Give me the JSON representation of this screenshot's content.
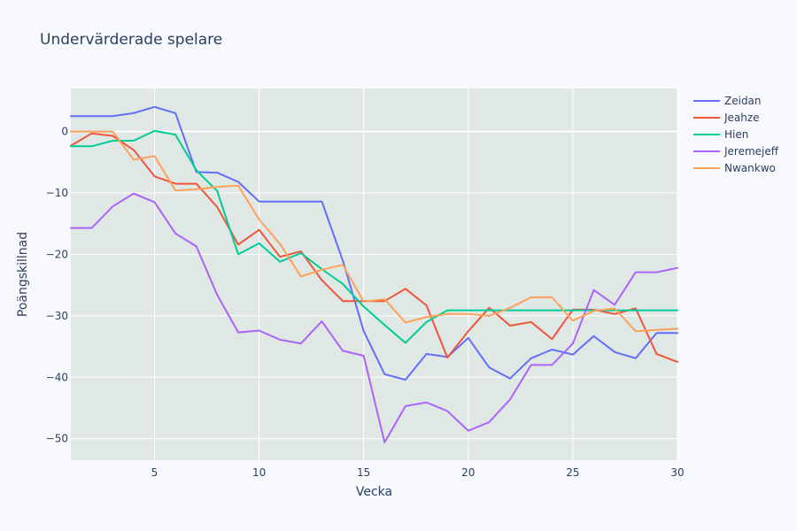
{
  "chart_data": {
    "type": "line",
    "title": "Undervärderade spelare",
    "xlabel": "Vecka",
    "ylabel": "Poängskillnad",
    "xlim": [
      1,
      30
    ],
    "ylim": [
      -53.5,
      7
    ],
    "x_ticks": [
      5,
      10,
      15,
      20,
      25,
      30
    ],
    "y_ticks": [
      0,
      -10,
      -20,
      -30,
      -40,
      -50
    ],
    "y_tick_labels": [
      "0",
      "−10",
      "−20",
      "−30",
      "−40",
      "−50"
    ],
    "grid": true,
    "legend_position": "top-right",
    "x": [
      1,
      2,
      3,
      4,
      5,
      6,
      7,
      8,
      9,
      10,
      11,
      12,
      13,
      14,
      15,
      16,
      17,
      18,
      19,
      20,
      21,
      22,
      23,
      24,
      25,
      26,
      27,
      28,
      29,
      30
    ],
    "series": [
      {
        "name": "Zeidan",
        "color": "#636efa",
        "values": [
          2.5,
          2.5,
          2.5,
          3.0,
          4.0,
          3.0,
          -6.6,
          -6.7,
          -8.2,
          -11.4,
          -11.4,
          -11.4,
          -11.4,
          -21.0,
          -32.5,
          -39.5,
          -40.4,
          -36.2,
          -36.7,
          -33.6,
          -38.4,
          -40.2,
          -36.9,
          -35.5,
          -36.3,
          -33.3,
          -35.9,
          -36.9,
          -32.8,
          -32.8
        ]
      },
      {
        "name": "Jeahze",
        "color": "#ef553b",
        "values": [
          -2.3,
          -0.3,
          -0.7,
          -3.0,
          -7.3,
          -8.5,
          -8.5,
          -12.3,
          -18.4,
          -16.0,
          -20.4,
          -19.5,
          -24.2,
          -27.6,
          -27.6,
          -27.6,
          -25.6,
          -28.3,
          -36.8,
          -32.5,
          -28.7,
          -31.6,
          -31.0,
          -33.8,
          -29.0,
          -29.0,
          -29.7,
          -28.8,
          -36.2,
          -37.5
        ]
      },
      {
        "name": "Hien",
        "color": "#00cc96",
        "values": [
          -2.4,
          -2.4,
          -1.5,
          -1.5,
          0.1,
          -0.5,
          -6.3,
          -9.7,
          -20.0,
          -18.2,
          -21.2,
          -19.8,
          -22.4,
          -24.8,
          -28.5,
          -31.5,
          -34.4,
          -31.0,
          -29.1,
          -29.1,
          -29.1,
          -29.1,
          -29.1,
          -29.1,
          -29.1,
          -29.1,
          -29.1,
          -29.1,
          -29.1,
          -29.1
        ]
      },
      {
        "name": "Jeremejeff",
        "color": "#ab63fa",
        "values": [
          -15.7,
          -15.7,
          -12.2,
          -10.1,
          -11.5,
          -16.6,
          -18.7,
          -26.6,
          -32.7,
          -32.4,
          -33.9,
          -34.5,
          -30.9,
          -35.7,
          -36.5,
          -50.6,
          -44.7,
          -44.1,
          -45.5,
          -48.7,
          -47.3,
          -43.6,
          -38.0,
          -38.0,
          -34.5,
          -25.8,
          -28.2,
          -22.9,
          -22.9,
          -22.2
        ]
      },
      {
        "name": "Nwankwo",
        "color": "#ffa15a",
        "values": [
          0.0,
          0.0,
          0.0,
          -4.6,
          -4.0,
          -9.6,
          -9.4,
          -9.0,
          -8.8,
          -14.3,
          -18.3,
          -23.6,
          -22.5,
          -21.7,
          -27.7,
          -27.3,
          -31.1,
          -30.2,
          -29.7,
          -29.7,
          -30.0,
          -28.7,
          -27.0,
          -27.0,
          -30.8,
          -29.2,
          -28.8,
          -32.5,
          -32.3,
          -32.1
        ]
      }
    ]
  }
}
